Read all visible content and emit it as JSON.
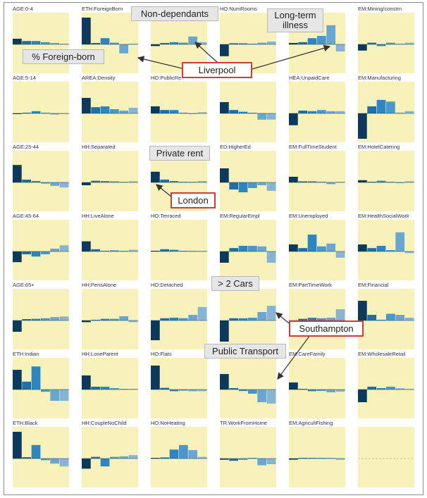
{
  "chart_data": {
    "type": "bar",
    "layout": "small-multiples",
    "grid": false,
    "bar_colors": [
      "#0d3a5c",
      "#1f6ea6",
      "#2d86c0",
      "#4a97cb",
      "#6aa6d2",
      "#86b3d6"
    ],
    "panel_background": "#f7f2ba",
    "panels": [
      {
        "label": "AGE:0-4",
        "values": [
          0.2,
          0.12,
          0.12,
          0.08,
          0.05,
          0.02
        ]
      },
      {
        "label": "ETH:ForeignBorn",
        "values": [
          0.95,
          0.05,
          0.22,
          0.06,
          -0.32,
          0.02
        ]
      },
      {
        "label": "",
        "values": [
          -0.06,
          0.05,
          0.08,
          0.06,
          0.28,
          0.08
        ]
      },
      {
        "label": "HO:NumRooms",
        "values": [
          -0.42,
          0.04,
          0.04,
          0.02,
          0.06,
          0.1
        ]
      },
      {
        "label": "",
        "values": [
          0.05,
          0.08,
          0.22,
          0.3,
          0.68,
          -0.25
        ]
      },
      {
        "label": "EM:Mining/constrn",
        "values": [
          -0.22,
          0.06,
          -0.06,
          0.06,
          0.02,
          0.06
        ]
      },
      {
        "label": "AGE:5-14",
        "values": [
          -0.02,
          0.0,
          0.08,
          0.0,
          -0.04,
          -0.02
        ]
      },
      {
        "label": "AREA:Density",
        "values": [
          0.55,
          0.22,
          0.25,
          0.15,
          0.1,
          0.2
        ]
      },
      {
        "label": "HO:PublicRe",
        "values": [
          0.25,
          0.12,
          0.12,
          0.0,
          -0.02,
          0.04
        ]
      },
      {
        "label": "",
        "values": [
          0.4,
          0.12,
          0.06,
          0.0,
          -0.22,
          -0.22
        ]
      },
      {
        "label": "HEA:UnpaidCare",
        "values": [
          -0.42,
          0.1,
          0.08,
          0.12,
          0.08,
          0.08
        ]
      },
      {
        "label": "EM:Manufacturing",
        "values": [
          -0.9,
          0.25,
          0.48,
          0.42,
          0.0,
          0.08
        ]
      },
      {
        "label": "AGE:25-44",
        "values": [
          0.62,
          0.1,
          0.05,
          -0.04,
          -0.12,
          -0.18
        ]
      },
      {
        "label": "HH:Separated",
        "values": [
          -0.1,
          0.06,
          0.05,
          0.04,
          0.0,
          0.04
        ]
      },
      {
        "label": "",
        "values": [
          0.38,
          0.1,
          0.05,
          0.0,
          0.0,
          0.05
        ]
      },
      {
        "label": "ED:HigherEd",
        "values": [
          0.5,
          -0.25,
          -0.35,
          -0.2,
          -0.1,
          -0.3
        ]
      },
      {
        "label": "EM:FullTimeStudent",
        "values": [
          0.2,
          0.04,
          0.04,
          0.0,
          -0.06,
          0.02
        ]
      },
      {
        "label": "EM:HotelCatering",
        "values": [
          0.08,
          0.0,
          0.06,
          0.0,
          -0.02,
          0.04
        ]
      },
      {
        "label": "AGE:45-64",
        "values": [
          -0.38,
          -0.1,
          -0.18,
          -0.1,
          0.1,
          0.22
        ]
      },
      {
        "label": "HH:LiveAlone",
        "values": [
          0.36,
          0.08,
          0.0,
          0.04,
          0.0,
          0.06
        ]
      },
      {
        "label": "HO:Terraced",
        "values": [
          0.02,
          0.08,
          0.06,
          0.0,
          0.0,
          0.0
        ]
      },
      {
        "label": "EM:RegularEmpl",
        "values": [
          -0.4,
          0.12,
          0.2,
          0.2,
          0.18,
          -0.4
        ]
      },
      {
        "label": "EM:Unemployed",
        "values": [
          0.25,
          0.12,
          0.6,
          0.18,
          0.28,
          -0.22
        ]
      },
      {
        "label": "EM:HealthSocialWork",
        "values": [
          0.25,
          0.12,
          0.2,
          0.05,
          0.68,
          -0.06
        ]
      },
      {
        "label": "AGE:65+",
        "values": [
          -0.4,
          0.05,
          0.06,
          0.08,
          0.12,
          0.14
        ]
      },
      {
        "label": "HH:PensAlone",
        "values": [
          -0.06,
          0.02,
          0.06,
          0.06,
          0.15,
          -0.06
        ]
      },
      {
        "label": "HO:Detached",
        "values": [
          -0.7,
          0.08,
          0.1,
          0.08,
          0.2,
          0.48
        ]
      },
      {
        "label": "",
        "values": [
          -0.75,
          0.08,
          0.08,
          0.1,
          0.3,
          0.52
        ]
      },
      {
        "label": "EM:PartTimeWork",
        "values": [
          -0.55,
          0.06,
          0.1,
          0.08,
          0.1,
          0.4
        ]
      },
      {
        "label": "EM:Financial",
        "values": [
          0.7,
          0.2,
          0.0,
          0.24,
          0.2,
          0.1
        ]
      },
      {
        "label": "ETH:Indian",
        "values": [
          0.7,
          0.28,
          0.82,
          -0.08,
          -0.4,
          -0.4
        ]
      },
      {
        "label": "HH:LoneParent",
        "values": [
          0.5,
          0.1,
          0.1,
          0.05,
          0.0,
          0.0
        ]
      },
      {
        "label": "HO:Flats",
        "values": [
          0.85,
          0.06,
          -0.06,
          -0.04,
          -0.06,
          -0.06
        ]
      },
      {
        "label": "",
        "values": [
          0.55,
          0.05,
          -0.05,
          -0.15,
          -0.45,
          -0.5
        ]
      },
      {
        "label": "EM:CareFamily",
        "values": [
          0.25,
          0.0,
          -0.06,
          -0.05,
          -0.1,
          -0.08
        ]
      },
      {
        "label": "EM:WholesaleRetail",
        "values": [
          -0.45,
          0.1,
          0.05,
          0.1,
          0.04,
          0.0
        ]
      },
      {
        "label": "ETH:Black",
        "values": [
          0.95,
          0.05,
          0.48,
          -0.06,
          -0.18,
          -0.28
        ]
      },
      {
        "label": "HH:CoupleNoChild",
        "values": [
          -0.36,
          0.06,
          -0.28,
          0.06,
          0.08,
          0.12
        ]
      },
      {
        "label": "HO:NoHeating",
        "values": [
          0.02,
          0.04,
          0.32,
          0.48,
          0.3,
          0.06
        ]
      },
      {
        "label": "TR:WorkFromHome",
        "values": [
          -0.04,
          -0.08,
          -0.04,
          0.0,
          -0.24,
          -0.2
        ]
      },
      {
        "label": "EM:AgricultFishing",
        "values": [
          -0.04,
          0.02,
          0.02,
          0.0,
          0.0,
          -0.04
        ]
      },
      {
        "label": "",
        "values": []
      }
    ]
  },
  "annotations": [
    {
      "text": "Non-dependants",
      "style": "grey"
    },
    {
      "text": "Long-term illness",
      "style": "grey"
    },
    {
      "text": "% Foreign-born",
      "style": "grey"
    },
    {
      "text": "Liverpool",
      "style": "red"
    },
    {
      "text": "Private rent",
      "style": "grey"
    },
    {
      "text": "London",
      "style": "red"
    },
    {
      "text": "> 2 Cars",
      "style": "grey"
    },
    {
      "text": "Southampton",
      "style": "red"
    },
    {
      "text": "Public Transport",
      "style": "grey"
    }
  ]
}
